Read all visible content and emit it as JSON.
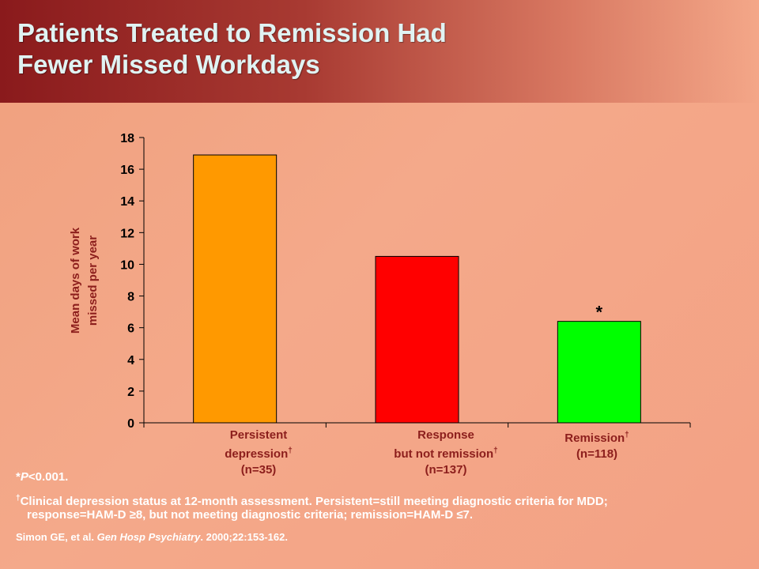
{
  "slide": {
    "title_line1": "Patients Treated to Remission Had",
    "title_line2": "Fewer Missed Workdays"
  },
  "chart_data": {
    "type": "bar",
    "title": "",
    "ylabel_line1": "Mean days of work",
    "ylabel_line2": "missed per year",
    "xlabel": "",
    "ylim": [
      0,
      18
    ],
    "yticks": [
      0,
      2,
      4,
      6,
      8,
      10,
      12,
      14,
      16,
      18
    ],
    "categories": [
      {
        "line1": "Persistent",
        "line2": "depression",
        "dagger": "†",
        "line3": "(n=35)"
      },
      {
        "line1": "Response",
        "line2": "but not remission",
        "dagger": "†",
        "line3": "(n=137)"
      },
      {
        "line1": "Remission",
        "dagger": "†",
        "line2": "(n=118)"
      }
    ],
    "values": [
      16.9,
      10.5,
      6.4
    ],
    "colors": [
      "#ff9900",
      "#ff0000",
      "#00ff00"
    ],
    "annotations": [
      {
        "category_index": 2,
        "text": "*"
      }
    ],
    "grid": false,
    "legend": "none"
  },
  "footnotes": {
    "p_star": "*",
    "p_italic": "P",
    "p_rest": "<0.001.",
    "dagger_mark": "†",
    "dagger_text": "Clinical depression status at 12-month assessment. Persistent=still meeting diagnostic criteria for MDD; response=HAM-D ≥8, but not meeting diagnostic criteria; remission=HAM-D ≤7.",
    "cite_authors": "Simon GE, et al. ",
    "cite_journal": "Gen Hosp Psychiatry",
    "cite_rest": ". 2000;22:153-162."
  }
}
